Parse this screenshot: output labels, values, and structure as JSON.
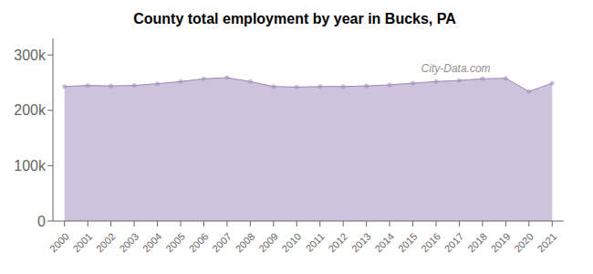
{
  "chart_data": {
    "type": "area",
    "title": "County total employment by year in Bucks, PA",
    "x": [
      2000,
      2001,
      2002,
      2003,
      2004,
      2005,
      2006,
      2007,
      2008,
      2009,
      2010,
      2011,
      2012,
      2013,
      2014,
      2015,
      2016,
      2017,
      2018,
      2019,
      2020,
      2021
    ],
    "values": [
      243000,
      245000,
      244000,
      245000,
      248000,
      252000,
      257000,
      259000,
      252000,
      243000,
      242000,
      243000,
      243000,
      244000,
      246000,
      249000,
      252000,
      254000,
      257000,
      258000,
      234000,
      249000
    ],
    "color": "#9B88B8",
    "marker": "circle",
    "xlim": [
      1999.5,
      2021.5
    ],
    "xticks": [
      2000,
      2001,
      2002,
      2003,
      2004,
      2005,
      2006,
      2007,
      2008,
      2009,
      2010,
      2011,
      2012,
      2013,
      2014,
      2015,
      2016,
      2017,
      2018,
      2019,
      2020,
      2021
    ],
    "ylim": [
      0,
      330000
    ],
    "yticks": [
      0,
      {
        "value": 100000,
        "label": "100k"
      },
      {
        "value": 200000,
        "label": "200k"
      },
      {
        "value": 300000,
        "label": "300k"
      }
    ],
    "annotations": [
      "City-Data.com"
    ],
    "grid": false
  }
}
